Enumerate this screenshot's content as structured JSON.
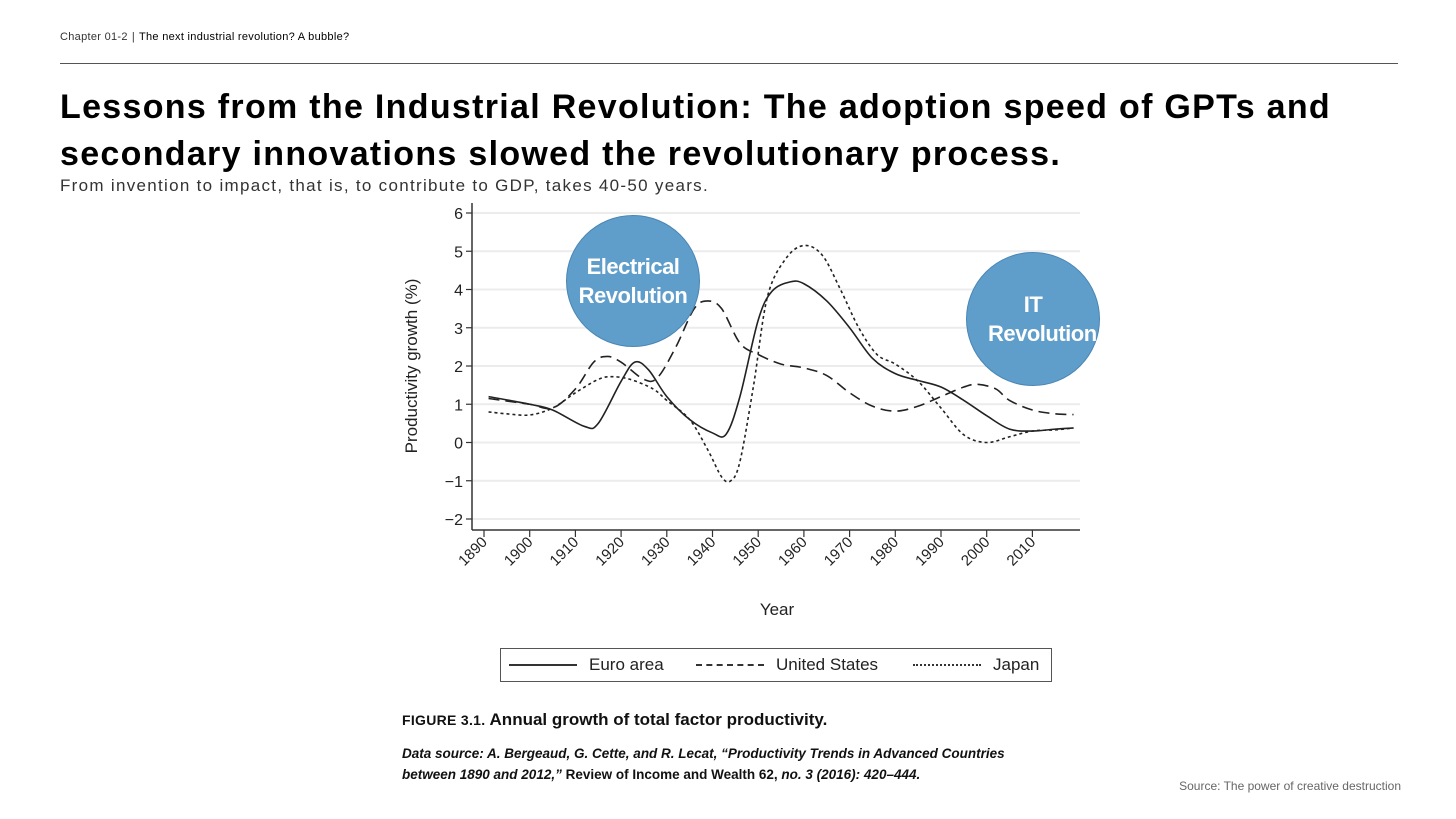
{
  "header": {
    "chapter": "Chapter 01-2",
    "separator": "|",
    "topic": "The next industrial revolution? A bubble?"
  },
  "title": "Lessons from the Industrial Revolution: The adoption speed of GPTs and secondary innovations slowed the revolutionary process.",
  "subtitle": "From invention to impact, that is, to contribute to GDP, takes 40-50 years.",
  "annotations": {
    "electrical": "Electrical Revolution",
    "it": "IT Revolution",
    "bubble_color": "#5f9dcb"
  },
  "figure": {
    "label": "FIGURE 3.1.",
    "caption": "Annual growth of total factor productivity.",
    "cite_italic_1": "Data source: A. Bergeaud, G. Cette, and R. Lecat, “Productivity Trends in Advanced Countries between 1890 and 2012,”",
    "cite_plain": " Review of Income and Wealth 62, ",
    "cite_italic_2": "no. 3 (2016): 420–444."
  },
  "source": "Source: The power of creative destruction",
  "chart_data": {
    "type": "line",
    "title": "Annual growth of total factor productivity",
    "xlabel": "Year",
    "ylabel": "Productivity growth (%)",
    "xlim": [
      1890,
      2020
    ],
    "ylim": [
      -2,
      6
    ],
    "xticks": [
      1890,
      1900,
      1910,
      1920,
      1930,
      1940,
      1950,
      1960,
      1970,
      1980,
      1990,
      2000,
      2010
    ],
    "yticks": [
      -2,
      -1,
      0,
      1,
      2,
      3,
      4,
      5,
      6
    ],
    "ytick_labels": [
      "−2",
      "−1",
      "0",
      "1",
      "2",
      "3",
      "4",
      "5",
      "6"
    ],
    "grid": "horizontal",
    "legend_position": "bottom",
    "series": [
      {
        "name": "Euro area",
        "style": "solid",
        "x": [
          1891,
          1900,
          1905,
          1912,
          1915,
          1920,
          1923,
          1926,
          1930,
          1935,
          1940,
          1943,
          1946,
          1950,
          1953,
          1957,
          1960,
          1965,
          1970,
          1975,
          1980,
          1985,
          1990,
          1995,
          2000,
          2005,
          2010,
          2015,
          2019
        ],
        "y": [
          1.2,
          1.0,
          0.85,
          0.42,
          0.5,
          1.6,
          2.1,
          1.9,
          1.2,
          0.6,
          0.25,
          0.22,
          1.2,
          3.2,
          3.95,
          4.2,
          4.15,
          3.7,
          3.0,
          2.2,
          1.8,
          1.62,
          1.45,
          1.1,
          0.7,
          0.35,
          0.3,
          0.35,
          0.38
        ]
      },
      {
        "name": "United States",
        "style": "dashed",
        "x": [
          1891,
          1900,
          1905,
          1910,
          1914,
          1917,
          1920,
          1925,
          1928,
          1932,
          1936,
          1939,
          1942,
          1946,
          1950,
          1955,
          1960,
          1965,
          1970,
          1975,
          1980,
          1985,
          1990,
          1995,
          1998,
          2002,
          2005,
          2010,
          2015,
          2019
        ],
        "y": [
          1.15,
          1.0,
          0.9,
          1.4,
          2.1,
          2.25,
          2.1,
          1.65,
          1.7,
          2.5,
          3.5,
          3.7,
          3.5,
          2.6,
          2.3,
          2.05,
          1.95,
          1.75,
          1.3,
          0.95,
          0.82,
          0.95,
          1.2,
          1.45,
          1.52,
          1.4,
          1.1,
          0.85,
          0.75,
          0.73
        ]
      },
      {
        "name": "Japan",
        "style": "dotted",
        "x": [
          1891,
          1895,
          1900,
          1905,
          1910,
          1915,
          1918,
          1922,
          1927,
          1930,
          1935,
          1939,
          1942,
          1944,
          1946,
          1949,
          1952,
          1956,
          1960,
          1964,
          1968,
          1972,
          1976,
          1980,
          1985,
          1990,
          1995,
          2000,
          2005,
          2010,
          2015,
          2019
        ],
        "y": [
          0.8,
          0.75,
          0.72,
          0.9,
          1.3,
          1.65,
          1.72,
          1.65,
          1.4,
          1.1,
          0.6,
          -0.2,
          -0.9,
          -1.0,
          -0.5,
          1.5,
          3.8,
          4.8,
          5.15,
          4.9,
          4.0,
          3.0,
          2.3,
          2.05,
          1.6,
          0.9,
          0.2,
          0.0,
          0.15,
          0.3,
          0.33,
          0.38
        ]
      }
    ]
  }
}
